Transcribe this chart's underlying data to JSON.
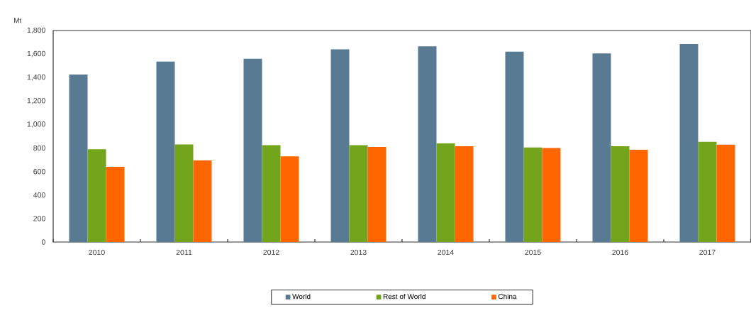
{
  "chart_data": {
    "type": "bar",
    "ylabel": "Mt",
    "categories": [
      "2010",
      "2011",
      "2012",
      "2013",
      "2014",
      "2015",
      "2016",
      "2017"
    ],
    "series": [
      {
        "name": "World",
        "color": "#587a93",
        "values": [
          1425,
          1535,
          1560,
          1640,
          1665,
          1620,
          1605,
          1685
        ]
      },
      {
        "name": "Rest of World",
        "color": "#72a51c",
        "values": [
          790,
          830,
          825,
          825,
          840,
          805,
          815,
          855
        ]
      },
      {
        "name": "China",
        "color": "#ff6600",
        "values": [
          640,
          695,
          730,
          810,
          815,
          800,
          785,
          830
        ]
      }
    ],
    "ylim": [
      0,
      1800
    ],
    "yticks": [
      {
        "value": 0,
        "label": "0"
      },
      {
        "value": 200,
        "label": "200"
      },
      {
        "value": 400,
        "label": "400"
      },
      {
        "value": 600,
        "label": "600"
      },
      {
        "value": 800,
        "label": "800"
      },
      {
        "value": 1000,
        "label": "1,000"
      },
      {
        "value": 1200,
        "label": "1,200"
      },
      {
        "value": 1400,
        "label": "1,400"
      },
      {
        "value": 1600,
        "label": "1,600"
      },
      {
        "value": 1800,
        "label": "1,800"
      }
    ],
    "legend": "bottom",
    "grid": false
  }
}
